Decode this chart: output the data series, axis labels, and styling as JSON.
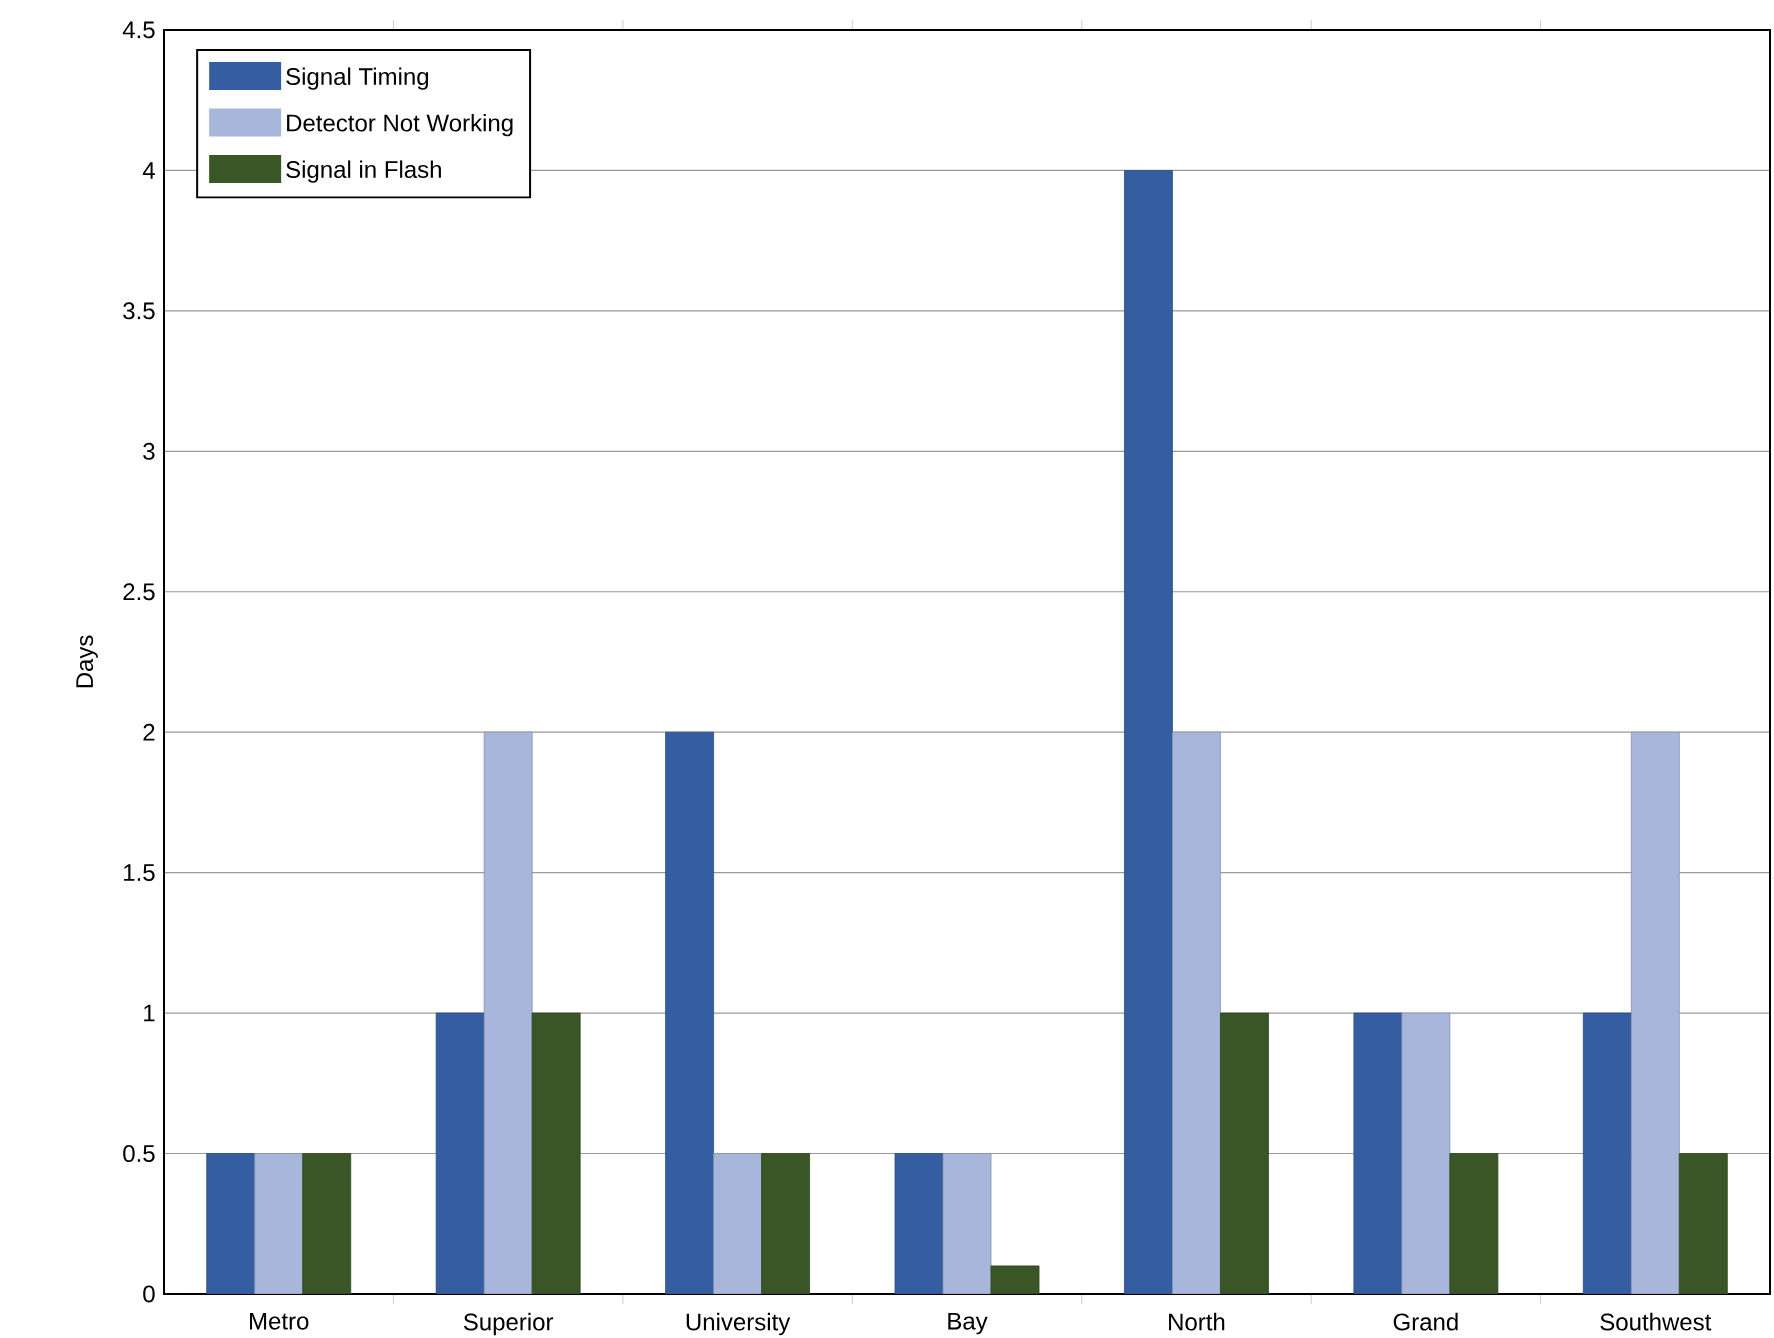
{
  "chart_data": {
    "type": "bar",
    "ylabel": "Days",
    "categories": [
      "Metro",
      "Superior",
      "University",
      "Bay",
      "North",
      "Grand",
      "Southwest"
    ],
    "series": [
      {
        "name": "Signal Timing",
        "color": "#355ea2",
        "values": [
          0.5,
          1,
          2,
          0.5,
          4,
          1,
          1
        ]
      },
      {
        "name": "Detector Not Working",
        "color": "#a8b6dc",
        "values": [
          0.5,
          2,
          0.5,
          0.5,
          2,
          1,
          2
        ]
      },
      {
        "name": "Signal in Flash",
        "color": "#3a5526",
        "values": [
          0.5,
          1,
          0.5,
          0.1,
          1,
          0.5,
          0.5
        ]
      }
    ],
    "ylim": [
      0,
      4.5
    ],
    "yticks": [
      0,
      0.5,
      1,
      1.5,
      2,
      2.5,
      3,
      3.5,
      4,
      4.5
    ],
    "grid": "y",
    "legend": "top left"
  }
}
